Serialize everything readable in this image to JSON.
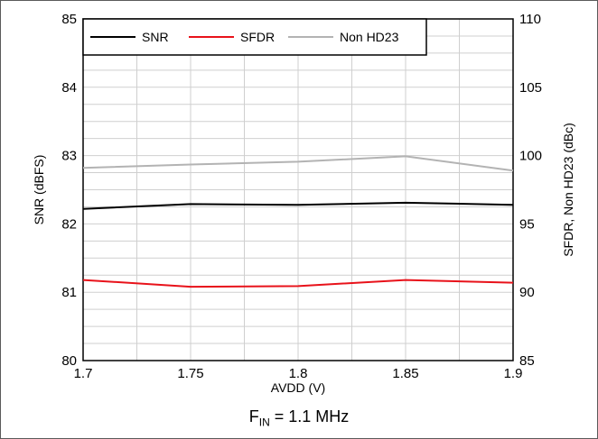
{
  "chart_data": {
    "type": "line",
    "x": [
      1.7,
      1.75,
      1.8,
      1.85,
      1.9
    ],
    "xlabel": "AVDD (V)",
    "xlim": [
      1.7,
      1.9
    ],
    "xticks": [
      "1.7",
      "1.75",
      "1.8",
      "1.85",
      "1.9"
    ],
    "ylabel_left": "SNR (dBFS)",
    "ylim_left": [
      80,
      85
    ],
    "yticks_left": [
      "80",
      "81",
      "82",
      "83",
      "84",
      "85"
    ],
    "ylabel_right": "SFDR, Non HD23 (dBc)",
    "ylim_right": [
      85,
      110
    ],
    "yticks_right": [
      "85",
      "90",
      "95",
      "100",
      "105",
      "110"
    ],
    "grid": true,
    "legend_position": "top-left",
    "series": [
      {
        "name": "SNR",
        "axis": "left",
        "color": "#000000",
        "values": [
          82.22,
          82.29,
          82.28,
          82.31,
          82.28
        ]
      },
      {
        "name": "SFDR",
        "axis": "right",
        "color": "#e8121a",
        "values": [
          90.9,
          90.4,
          90.45,
          90.9,
          90.7
        ]
      },
      {
        "name": "Non HD23",
        "axis": "right",
        "color": "#b3b3b3",
        "values": [
          99.1,
          99.35,
          99.55,
          99.95,
          98.9
        ]
      }
    ],
    "footer": {
      "main": "F",
      "sub": "IN",
      "rest": " = 1.1 MHz"
    }
  }
}
